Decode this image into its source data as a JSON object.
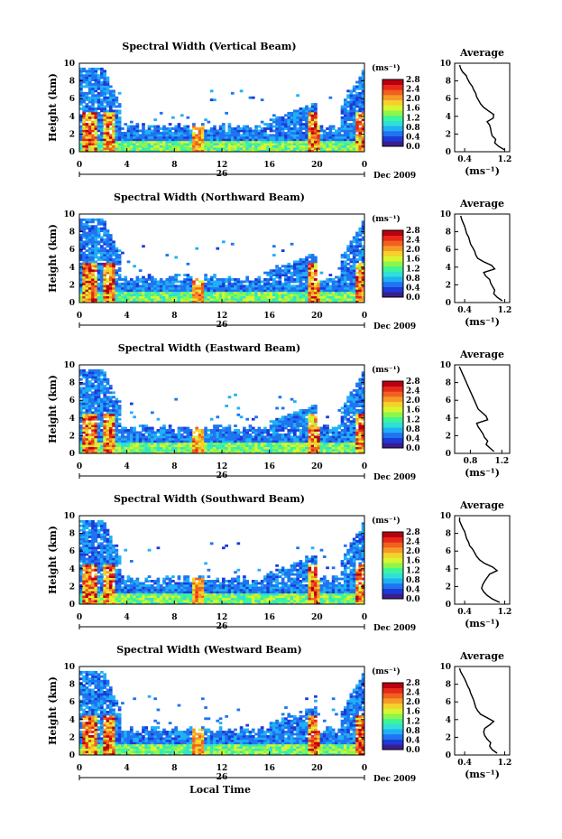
{
  "figure": {
    "shared_x_label": "Local Time",
    "date_label": "Dec 2009",
    "day_label": "26",
    "colorbar_unit": "(ms⁻¹)",
    "colorbar_ticks": [
      "0.0",
      "0.4",
      "0.8",
      "1.2",
      "1.6",
      "2.0",
      "2.4",
      "2.8"
    ],
    "colorbar_colors": [
      "#3b1d8f",
      "#1c3ad9",
      "#1f74f0",
      "#20b0f5",
      "#2fe0d6",
      "#3cf59a",
      "#8ef54a",
      "#d8f530",
      "#f5d12b",
      "#f59a26",
      "#f0601f",
      "#e8281a",
      "#b8000f"
    ],
    "average_title": "Average",
    "average_xlabel": "(ms⁻¹)"
  },
  "chart_data": [
    {
      "type": "heatmap",
      "title": "Spectral Width (Vertical Beam)",
      "ylabel": "Height (km)",
      "xlabel": "Local Time",
      "x_ticks": [
        "0",
        "4",
        "8",
        "12",
        "16",
        "20",
        "0"
      ],
      "xlim": [
        0,
        24
      ],
      "y_ticks": [
        "0",
        "2",
        "4",
        "6",
        "8",
        "10"
      ],
      "ylim": [
        0,
        10
      ],
      "colorbar": {
        "label": "(ms⁻¹)",
        "range": [
          0.0,
          2.8
        ]
      },
      "average_profile": {
        "title": "Average",
        "xlabel": "(ms⁻¹)",
        "x_ticks": [
          "0.4",
          "1.2"
        ],
        "xlim": [
          0.2,
          1.3
        ],
        "height_km": [
          0.2,
          0.6,
          1.0,
          1.4,
          1.8,
          2.2,
          2.6,
          3.0,
          3.4,
          3.8,
          4.2,
          4.6,
          5.0,
          5.4,
          5.8,
          6.2,
          6.6,
          7.0,
          7.4,
          7.8,
          8.2,
          8.6,
          9.0,
          9.4,
          9.8
        ],
        "values": [
          1.2,
          1.08,
          1.0,
          1.02,
          0.95,
          0.93,
          0.92,
          0.9,
          0.85,
          0.97,
          0.98,
          0.88,
          0.78,
          0.72,
          0.68,
          0.64,
          0.62,
          0.58,
          0.55,
          0.5,
          0.46,
          0.43,
          0.36,
          0.32,
          0.3
        ]
      }
    },
    {
      "type": "heatmap",
      "title": "Spectral Width (Northward Beam)",
      "ylabel": "Height (km)",
      "xlabel": "Local Time",
      "x_ticks": [
        "0",
        "4",
        "8",
        "12",
        "16",
        "20",
        "0"
      ],
      "xlim": [
        0,
        24
      ],
      "y_ticks": [
        "0",
        "2",
        "4",
        "6",
        "8",
        "10"
      ],
      "ylim": [
        0,
        10
      ],
      "colorbar": {
        "label": "(ms⁻¹)",
        "range": [
          0.0,
          2.8
        ]
      },
      "average_profile": {
        "title": "Average",
        "xlabel": "(ms⁻¹)",
        "x_ticks": [
          "0.4",
          "1.2"
        ],
        "xlim": [
          0.2,
          1.3
        ],
        "height_km": [
          0.2,
          0.6,
          1.0,
          1.4,
          1.8,
          2.2,
          2.6,
          3.0,
          3.4,
          3.8,
          4.2,
          4.6,
          5.0,
          5.4,
          5.8,
          6.2,
          6.6,
          7.0,
          7.4,
          7.8,
          8.2,
          8.6,
          9.0,
          9.4,
          9.8
        ],
        "values": [
          1.15,
          1.05,
          0.98,
          1.0,
          0.96,
          0.92,
          0.9,
          0.82,
          0.78,
          1.0,
          0.94,
          0.78,
          0.66,
          0.62,
          0.6,
          0.56,
          0.52,
          0.5,
          0.48,
          0.44,
          0.42,
          0.4,
          0.37,
          0.34,
          0.32
        ]
      }
    },
    {
      "type": "heatmap",
      "title": "Spectral Width (Eastward Beam)",
      "ylabel": "Height (km)",
      "xlabel": "Local Time",
      "x_ticks": [
        "0",
        "4",
        "8",
        "12",
        "16",
        "20",
        "0"
      ],
      "xlim": [
        0,
        24
      ],
      "y_ticks": [
        "0",
        "2",
        "4",
        "6",
        "8",
        "10"
      ],
      "ylim": [
        0,
        10
      ],
      "colorbar": {
        "label": "(ms⁻¹)",
        "range": [
          0.0,
          2.8
        ]
      },
      "average_profile": {
        "title": "Average",
        "xlabel": "(ms⁻¹)",
        "x_ticks": [
          "0.8",
          "1.2"
        ],
        "xlim": [
          0.6,
          1.3
        ],
        "height_km": [
          0.2,
          0.6,
          1.0,
          1.4,
          1.8,
          2.2,
          2.6,
          3.0,
          3.4,
          3.8,
          4.2,
          4.6,
          5.0,
          5.4,
          5.8,
          6.2,
          6.6,
          7.0,
          7.4,
          7.8,
          8.2,
          8.6,
          9.0,
          9.4,
          9.8
        ],
        "values": [
          1.1,
          1.05,
          1.0,
          1.02,
          0.98,
          0.96,
          0.93,
          0.9,
          0.88,
          1.02,
          1.0,
          0.95,
          0.9,
          0.88,
          0.86,
          0.84,
          0.82,
          0.8,
          0.78,
          0.76,
          0.74,
          0.72,
          0.7,
          0.68,
          0.66
        ]
      }
    },
    {
      "type": "heatmap",
      "title": "Spectral Width (Southward Beam)",
      "ylabel": "Height (km)",
      "xlabel": "Local Time",
      "x_ticks": [
        "0",
        "4",
        "8",
        "12",
        "16",
        "20",
        "0"
      ],
      "xlim": [
        0,
        24
      ],
      "y_ticks": [
        "0",
        "2",
        "4",
        "6",
        "8",
        "10"
      ],
      "ylim": [
        0,
        10
      ],
      "colorbar": {
        "label": "(ms⁻¹)",
        "range": [
          0.0,
          2.8
        ]
      },
      "average_profile": {
        "title": "Average",
        "xlabel": "(ms⁻¹)",
        "x_ticks": [
          "0.4",
          "1.2"
        ],
        "xlim": [
          0.2,
          1.3
        ],
        "height_km": [
          0.2,
          0.6,
          1.0,
          1.4,
          1.8,
          2.2,
          2.6,
          3.0,
          3.4,
          3.8,
          4.2,
          4.6,
          5.0,
          5.4,
          5.8,
          6.2,
          6.6,
          7.0,
          7.4,
          7.8,
          8.2,
          8.6,
          9.0,
          9.4,
          9.8
        ],
        "values": [
          1.1,
          0.95,
          0.85,
          0.78,
          0.74,
          0.76,
          0.8,
          0.85,
          0.9,
          1.05,
          0.96,
          0.8,
          0.7,
          0.64,
          0.6,
          0.56,
          0.5,
          0.48,
          0.44,
          0.42,
          0.4,
          0.36,
          0.33,
          0.3,
          0.3
        ]
      }
    },
    {
      "type": "heatmap",
      "title": "Spectral Width (Westward Beam)",
      "ylabel": "Height (km)",
      "xlabel": "Local Time",
      "x_ticks": [
        "0",
        "4",
        "8",
        "12",
        "16",
        "20",
        "0"
      ],
      "xlim": [
        0,
        24
      ],
      "y_ticks": [
        "0",
        "2",
        "4",
        "6",
        "8",
        "10"
      ],
      "ylim": [
        0,
        10
      ],
      "colorbar": {
        "label": "(ms⁻¹)",
        "range": [
          0.0,
          2.8
        ]
      },
      "average_profile": {
        "title": "Average",
        "xlabel": "(ms⁻¹)",
        "x_ticks": [
          "0.4",
          "1.2"
        ],
        "xlim": [
          0.2,
          1.3
        ],
        "height_km": [
          0.2,
          0.6,
          1.0,
          1.4,
          1.8,
          2.2,
          2.6,
          3.0,
          3.4,
          3.8,
          4.2,
          4.6,
          5.0,
          5.4,
          5.8,
          6.2,
          6.6,
          7.0,
          7.4,
          7.8,
          8.2,
          8.6,
          9.0,
          9.4,
          9.8
        ],
        "values": [
          1.05,
          0.95,
          0.9,
          0.92,
          0.85,
          0.8,
          0.78,
          0.8,
          0.9,
          0.98,
          0.85,
          0.72,
          0.66,
          0.62,
          0.6,
          0.58,
          0.55,
          0.52,
          0.5,
          0.46,
          0.43,
          0.4,
          0.36,
          0.32,
          0.3
        ]
      }
    }
  ]
}
